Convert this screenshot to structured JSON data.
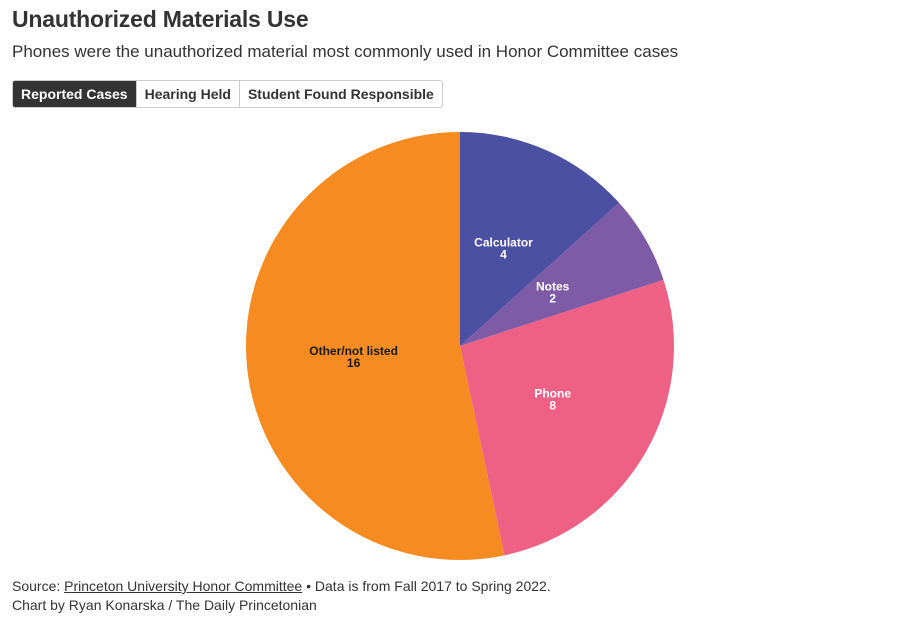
{
  "header": {
    "title": "Unauthorized Materials Use",
    "subtitle": "Phones were the unauthorized material most commonly used in Honor Committee cases"
  },
  "tabs": [
    {
      "label": "Reported Cases",
      "active": true
    },
    {
      "label": "Hearing Held",
      "active": false
    },
    {
      "label": "Student Found Responsible",
      "active": false
    }
  ],
  "chart_data": {
    "type": "pie",
    "title": "Unauthorized Materials Use",
    "series_name": "Reported Cases",
    "slices": [
      {
        "label": "Calculator",
        "value": 4,
        "color": "#4b50a2",
        "text_color": "#ffffff"
      },
      {
        "label": "Notes",
        "value": 2,
        "color": "#7d5ba6",
        "text_color": "#ffffff"
      },
      {
        "label": "Phone",
        "value": 8,
        "color": "#ef6184",
        "text_color": "#ffffff"
      },
      {
        "label": "Other/not listed",
        "value": 16,
        "color": "#f58b21",
        "text_color": "#1a1a1a"
      }
    ]
  },
  "footer": {
    "source_prefix": "Source: ",
    "source_link": "Princeton University Honor Committee",
    "source_suffix": " • Data is from Fall 2017 to Spring 2022.",
    "credit": "Chart by Ryan Konarska / The Daily Princetonian"
  }
}
